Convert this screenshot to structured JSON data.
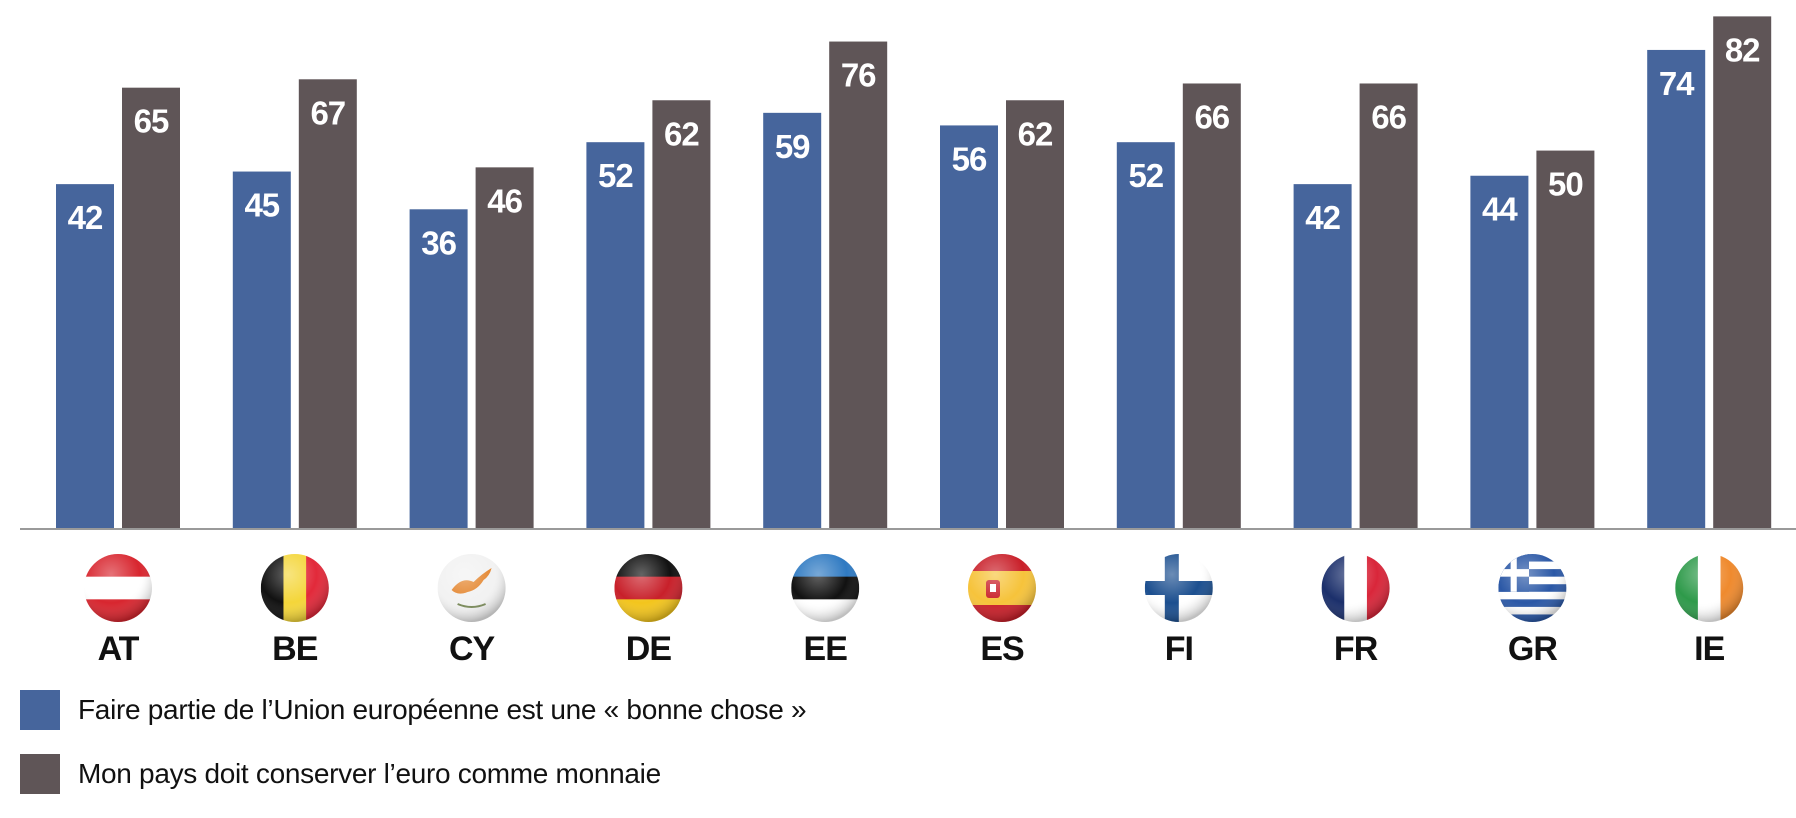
{
  "chart_data": {
    "type": "bar",
    "title": "",
    "xlabel": "",
    "ylabel": "",
    "grid": false,
    "legend_position": "bottom-left",
    "categories": [
      "AT",
      "BE",
      "CY",
      "DE",
      "EE",
      "ES",
      "FI",
      "FR",
      "GR",
      "IE"
    ],
    "flags": [
      "flag-austria",
      "flag-belgium",
      "flag-cyprus",
      "flag-germany",
      "flag-estonia",
      "flag-spain",
      "flag-finland",
      "flag-france",
      "flag-greece",
      "flag-ireland"
    ],
    "series": [
      {
        "name": "Faire partie de l’Union européenne est une « bonne chose »",
        "color": "#46659c",
        "values": [
          42,
          45,
          36,
          52,
          59,
          56,
          52,
          42,
          44,
          74
        ]
      },
      {
        "name": "Mon pays doit conserver l’euro comme monnaie",
        "color": "#5f5557",
        "values": [
          65,
          67,
          46,
          62,
          76,
          62,
          66,
          66,
          50,
          82
        ]
      }
    ],
    "ylim": [
      -40,
      84
    ]
  }
}
